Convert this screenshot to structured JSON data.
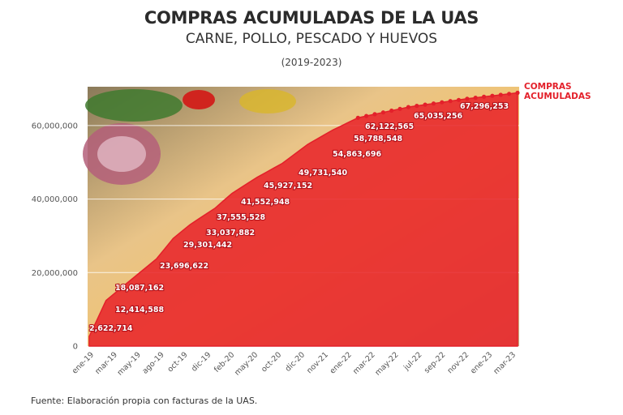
{
  "header": {
    "title": "COMPRAS ACUMULADAS DE LA UAS",
    "subtitle": "CARNE, POLLO, PESCADO Y HUEVOS",
    "period": "(2019-2023)"
  },
  "legend": {
    "line1": "COMPRAS",
    "line2": "ACUMULADAS"
  },
  "footer": {
    "source": "Fuente: Elaboración propia con facturas de la UAS."
  },
  "colors": {
    "series": "#e3202a",
    "area": "#e8252b",
    "grid": "#ffffff",
    "text": "#333333"
  },
  "chart_data": {
    "type": "area",
    "title": "COMPRAS ACUMULADAS DE LA UAS",
    "subtitle": "CARNE, POLLO, PESCADO Y HUEVOS (2019-2023)",
    "xlabel": "",
    "ylabel": "",
    "ylim": [
      0,
      70000000
    ],
    "yticks": [
      0,
      20000000,
      40000000,
      60000000
    ],
    "ytick_labels": [
      "0",
      "20,000,000",
      "40,000,000",
      "60,000,000"
    ],
    "grid": true,
    "legend_position": "right-top",
    "series": [
      {
        "name": "COMPRAS ACUMULADAS"
      }
    ],
    "xtick_labels": [
      "ene-19",
      "mar-19",
      "may-19",
      "ago-19",
      "oct-19",
      "dic-19",
      "feb-20",
      "may-20",
      "oct-20",
      "dic-20",
      "nov-21",
      "ene-22",
      "mar-22",
      "may-22",
      "jul-22",
      "sep-22",
      "nov-22",
      "ene-23",
      "mar-23"
    ],
    "labeled_points": [
      {
        "x": "ene-19",
        "value": 2622714,
        "label": "2,622,714"
      },
      {
        "x": "mar-19",
        "value": 12414588,
        "label": "12,414,588"
      },
      {
        "x": "may-19",
        "value": 18087162,
        "label": "18,087,162"
      },
      {
        "x": "ago-19",
        "value": 23696622,
        "label": "23,696,622"
      },
      {
        "x": "oct-19",
        "value": 29301442,
        "label": "29,301,442"
      },
      {
        "x": "dic-19",
        "value": 33037882,
        "label": "33,037,882"
      },
      {
        "x": "feb-20",
        "value": 37555528,
        "label": "37,555,528"
      },
      {
        "x": "may-20",
        "value": 41552948,
        "label": "41,552,948"
      },
      {
        "x": "oct-20",
        "value": 45927152,
        "label": "45,927,152"
      },
      {
        "x": "dic-20",
        "value": 49731540,
        "label": "49,731,540"
      },
      {
        "x": "nov-21",
        "value": 54863696,
        "label": "54,863,696"
      },
      {
        "x": "ene-22",
        "value": 58788548,
        "label": "58,788,548"
      },
      {
        "x": "mar-22",
        "value": 62122565,
        "label": "62,122,565"
      },
      {
        "x": "jul-22",
        "value": 65035256,
        "label": "65,035,256"
      },
      {
        "x": "nov-22",
        "value": 67296253,
        "label": "67,296,253"
      }
    ],
    "final_value_approx": 68900000
  }
}
